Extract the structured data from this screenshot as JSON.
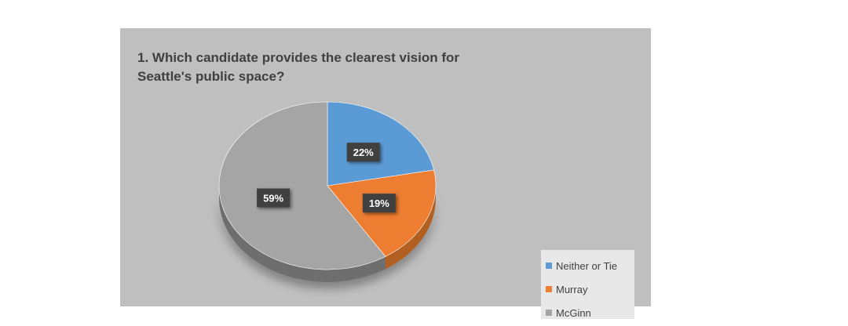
{
  "chart_data": {
    "type": "pie",
    "title": "1. Which candidate provides the clearest vision for\nSeattle's public space?",
    "categories": [
      "Neither or Tie",
      "Murray",
      "McGinn"
    ],
    "values": [
      22,
      19,
      59
    ],
    "labels": [
      "22%",
      "19%",
      "59%"
    ],
    "colors": [
      "#5b9bd5",
      "#ed7d31",
      "#a5a5a5"
    ],
    "side_colors": [
      "#44749f",
      "#b25e24",
      "#6e6e6e"
    ],
    "start_angle_deg": 0,
    "direction": "clockwise",
    "style": "3d-tilted",
    "legend_position": "bottom-right"
  }
}
